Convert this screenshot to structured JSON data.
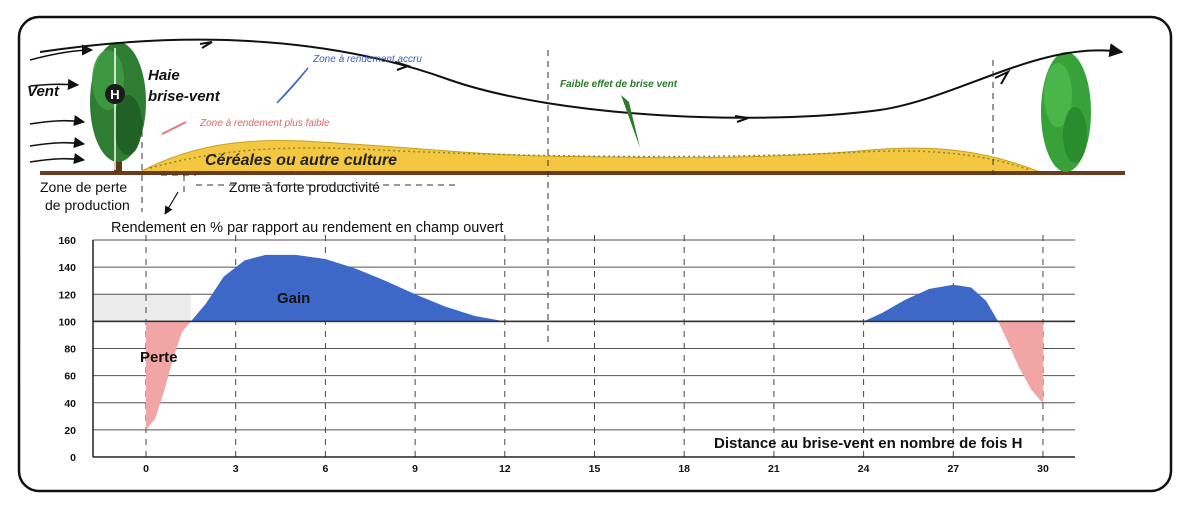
{
  "illustration": {
    "wind_label": "Vent",
    "hedge_label_line1": "Haie",
    "hedge_label_line2": "brise-vent",
    "hedge_height_symbol": "H",
    "zone_increased_yield": "Zone à rendement accru",
    "zone_lower_yield": "Zone à rendement plus faible",
    "weak_effect": "Faible effet de brise vent",
    "crop_label": "Céréales ou autre culture",
    "loss_zone_line1": "Zone de perte",
    "loss_zone_line2": "de production",
    "high_productivity_zone": "Zone à forte productivité"
  },
  "chart_data": {
    "type": "area",
    "title": "Rendement en % par rapport au rendement en champ ouvert",
    "xlabel": "Distance au brise-vent en nombre de fois H",
    "ylabel": "",
    "xlim": [
      -2,
      31
    ],
    "ylim": [
      0,
      160
    ],
    "x_ticks": [
      0,
      3,
      6,
      9,
      12,
      15,
      18,
      21,
      24,
      27,
      30
    ],
    "y_ticks": [
      0,
      20,
      40,
      60,
      80,
      100,
      120,
      140,
      160
    ],
    "baseline": 100,
    "grid": true,
    "regions": [
      {
        "name": "Perte",
        "color": "#f2a5a5",
        "points": [
          [
            0,
            100
          ],
          [
            0,
            20
          ],
          [
            0.3,
            28
          ],
          [
            0.6,
            48
          ],
          [
            0.9,
            72
          ],
          [
            1.2,
            92
          ],
          [
            1.5,
            100
          ]
        ]
      },
      {
        "name": "Gain",
        "color": "#3d68c8",
        "points": [
          [
            1.5,
            100
          ],
          [
            2,
            113
          ],
          [
            2.6,
            133
          ],
          [
            3.3,
            145
          ],
          [
            4,
            149
          ],
          [
            5,
            149
          ],
          [
            6,
            146
          ],
          [
            7,
            139
          ],
          [
            8,
            130
          ],
          [
            9,
            120
          ],
          [
            10,
            111
          ],
          [
            11,
            104
          ],
          [
            12,
            100
          ]
        ]
      },
      {
        "name": "Gain (2)",
        "color": "#3d68c8",
        "points": [
          [
            24,
            100
          ],
          [
            24.6,
            106
          ],
          [
            25.4,
            116
          ],
          [
            26.2,
            124
          ],
          [
            27,
            127
          ],
          [
            27.6,
            125
          ],
          [
            28.1,
            115
          ],
          [
            28.5,
            100
          ]
        ]
      },
      {
        "name": "Perte (2)",
        "color": "#f2a5a5",
        "points": [
          [
            28.5,
            100
          ],
          [
            28.8,
            86
          ],
          [
            29.2,
            66
          ],
          [
            29.6,
            50
          ],
          [
            29.9,
            42
          ],
          [
            30,
            40
          ],
          [
            30,
            100
          ]
        ]
      }
    ],
    "labels": {
      "gain": "Gain",
      "loss": "Perte"
    },
    "colors": {
      "gain": "#3d68c8",
      "loss": "#f2a5a5",
      "background_band": "#ececec"
    }
  }
}
